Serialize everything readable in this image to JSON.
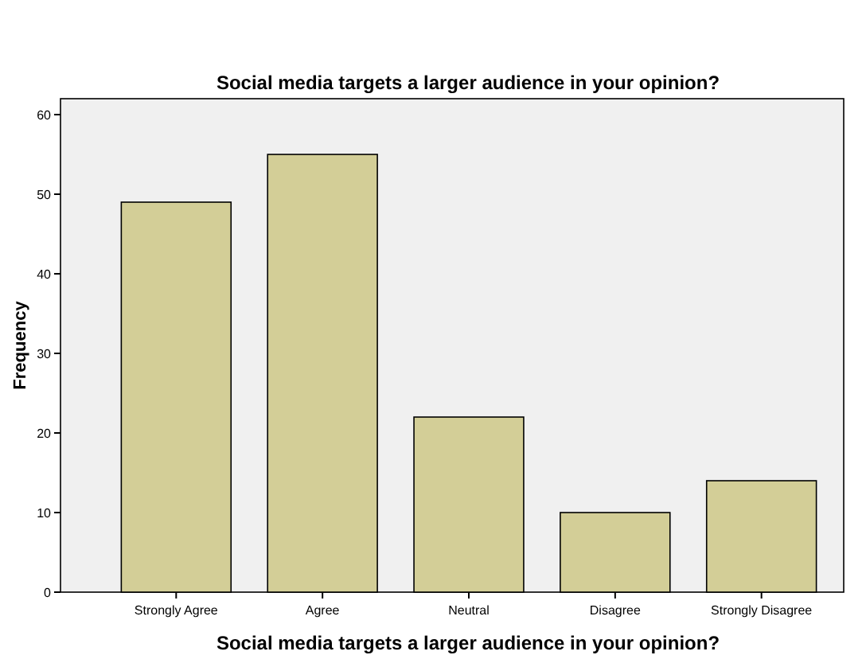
{
  "chart_data": {
    "type": "bar",
    "title": "Social media targets a larger audience in your opinion?",
    "xlabel": "Social media targets a larger audience in your opinion?",
    "ylabel": "Frequency",
    "categories": [
      "Strongly Agree",
      "Agree",
      "Neutral",
      "Disagree",
      "Strongly Disagree"
    ],
    "values": [
      49,
      55,
      22,
      10,
      14
    ],
    "color": "#d3ce97",
    "ylim": [
      0,
      62
    ],
    "yticks": [
      0,
      10,
      20,
      30,
      40,
      50,
      60
    ],
    "grid": false
  }
}
